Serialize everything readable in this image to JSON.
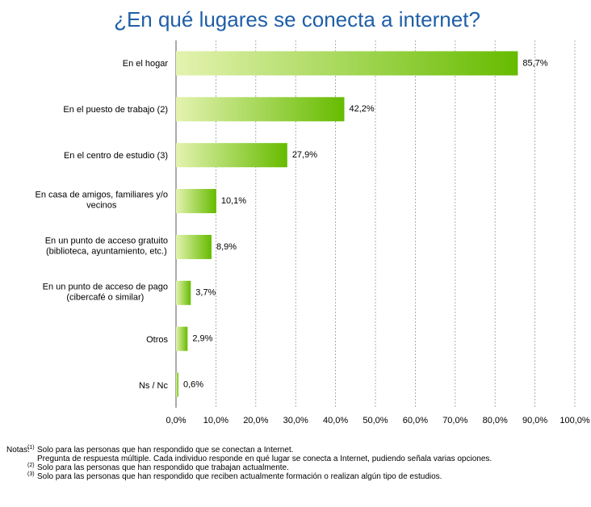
{
  "chart_data": {
    "type": "barh",
    "title": "¿En qué lugares se conecta a internet?",
    "categories": [
      "En el hogar",
      "En el puesto de trabajo (2)",
      "En el centro de estudio (3)",
      "En casa de amigos, familiares y/o\nvecinos",
      "En un punto de acceso gratuito\n(biblioteca, ayuntamiento, etc.)",
      "En un punto de acceso de pago\n(cibercafé o similar)",
      "Otros",
      "Ns / Nc"
    ],
    "values": [
      85.7,
      42.2,
      27.9,
      10.1,
      8.9,
      3.7,
      2.9,
      0.6
    ],
    "value_labels": [
      "85,7%",
      "42,2%",
      "27,9%",
      "10,1%",
      "8,9%",
      "3,7%",
      "2,9%",
      "0,6%"
    ],
    "gradient": [
      "#e4f3b0",
      "#66bb00"
    ],
    "xlim": [
      0,
      100
    ],
    "xticks": [
      {
        "value": 0,
        "label": "0,0%"
      },
      {
        "value": 10,
        "label": "10,0%"
      },
      {
        "value": 20,
        "label": "20,0%"
      },
      {
        "value": 30,
        "label": "30,0%"
      },
      {
        "value": 40,
        "label": "40,0%"
      },
      {
        "value": 50,
        "label": "50,0%"
      },
      {
        "value": 60,
        "label": "60,0%"
      },
      {
        "value": 70,
        "label": "70,0%"
      },
      {
        "value": 80,
        "label": "80,0%"
      },
      {
        "value": 90,
        "label": "90,0%"
      },
      {
        "value": 100,
        "label": "100,0%"
      }
    ],
    "grid": true,
    "notes_label": "Notas:",
    "notes": [
      {
        "marker": "(1)",
        "lines": [
          "Solo para las personas que han respondido que se conectan a Internet.",
          "Pregunta de respuesta múltiple. Cada individuo responde en qué lugar se conecta a Internet, pudiendo señala varias opciones."
        ]
      },
      {
        "marker": "(2)",
        "lines": [
          "Solo para las personas que han respondido que trabajan actualmente."
        ]
      },
      {
        "marker": "(3)",
        "lines": [
          "Solo para las personas que han respondido que reciben actualmente formación o realizan algún tipo de estudios."
        ]
      }
    ]
  }
}
